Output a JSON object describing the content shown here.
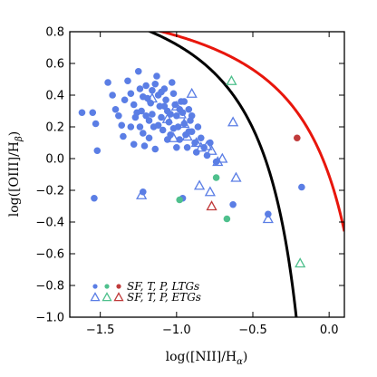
{
  "chart_data": {
    "type": "scatter",
    "title": "",
    "xlabel": "log([NII]/H",
    "xlabel_sub": "α",
    "xlabel_close": ")",
    "ylabel": "log([OIII]/H",
    "ylabel_sub": "β",
    "ylabel_close": ")",
    "xlim": [
      -1.7,
      0.1
    ],
    "ylim": [
      -1.0,
      0.8
    ],
    "xticks": [
      "−1.5",
      "−1.0",
      "−0.5",
      "0.0"
    ],
    "xtick_values": [
      -1.5,
      -1.0,
      -0.5,
      0.0
    ],
    "yticks": [
      "−1.0",
      "−0.8",
      "−0.6",
      "−0.4",
      "−0.2",
      "0.0",
      "0.2",
      "0.4",
      "0.6",
      "0.8"
    ],
    "ytick_values": [
      -1.0,
      -0.8,
      -0.6,
      -0.4,
      -0.2,
      0.0,
      0.2,
      0.4,
      0.6,
      0.8
    ],
    "grid": false,
    "legend_position": "bottom-left",
    "legend_rows": [
      "SF,  T,  P,  LTGs",
      "SF,  T,  P,  ETGs"
    ],
    "colors": {
      "sf": "#5b7ee5",
      "t": "#4fc08d",
      "p": "#c03b3b",
      "kauffmann": "#000000",
      "kewley": "#e8160c"
    },
    "curves": [
      {
        "name": "kauffmann",
        "formula": "0.61/(x-0.05)+1.3",
        "x_max": -0.21
      },
      {
        "name": "kewley",
        "formula": "0.61/(x-0.47)+1.19",
        "x_max": 0.1
      }
    ],
    "series": [
      {
        "class": "SF",
        "galaxy": "LTG",
        "marker": "circle",
        "points": [
          [
            -1.62,
            0.29
          ],
          [
            -1.55,
            0.29
          ],
          [
            -1.53,
            0.22
          ],
          [
            -1.52,
            0.05
          ],
          [
            -1.54,
            -0.25
          ],
          [
            -1.45,
            0.48
          ],
          [
            -1.42,
            0.4
          ],
          [
            -1.4,
            0.31
          ],
          [
            -1.38,
            0.27
          ],
          [
            -1.36,
            0.21
          ],
          [
            -1.35,
            0.14
          ],
          [
            -1.34,
            0.37
          ],
          [
            -1.32,
            0.49
          ],
          [
            -1.3,
            0.41
          ],
          [
            -1.28,
            0.34
          ],
          [
            -1.27,
            0.26
          ],
          [
            -1.25,
            0.55
          ],
          [
            -1.24,
            0.44
          ],
          [
            -1.23,
            0.3
          ],
          [
            -1.22,
            0.16
          ],
          [
            -1.21,
            0.08
          ],
          [
            -1.2,
            0.46
          ],
          [
            -1.19,
            0.38
          ],
          [
            -1.18,
            0.24
          ],
          [
            -1.17,
            0.35
          ],
          [
            -1.16,
            0.28
          ],
          [
            -1.15,
            0.2
          ],
          [
            -1.14,
            0.47
          ],
          [
            -1.13,
            0.52
          ],
          [
            -1.12,
            0.4
          ],
          [
            -1.11,
            0.33
          ],
          [
            -1.1,
            0.26
          ],
          [
            -1.09,
            0.18
          ],
          [
            -1.08,
            0.44
          ],
          [
            -1.07,
            0.37
          ],
          [
            -1.06,
            0.3
          ],
          [
            -1.05,
            0.23
          ],
          [
            -1.04,
            0.15
          ],
          [
            -1.03,
            0.48
          ],
          [
            -1.02,
            0.41
          ],
          [
            -1.01,
            0.34
          ],
          [
            -1.0,
            0.27
          ],
          [
            -0.99,
            0.2
          ],
          [
            -0.98,
            0.12
          ],
          [
            -0.97,
            0.36
          ],
          [
            -0.96,
            0.29
          ],
          [
            -0.95,
            0.22
          ],
          [
            -0.94,
            0.15
          ],
          [
            -0.93,
            0.07
          ],
          [
            -0.92,
            0.31
          ],
          [
            -0.91,
            0.24
          ],
          [
            -0.9,
            0.17
          ],
          [
            -0.88,
            0.1
          ],
          [
            -0.87,
            0.04
          ],
          [
            -0.86,
            0.2
          ],
          [
            -0.84,
            0.13
          ],
          [
            -0.82,
            0.07
          ],
          [
            -0.8,
            0.02
          ],
          [
            -0.78,
            0.1
          ],
          [
            -0.74,
            -0.02
          ],
          [
            -1.26,
            0.29
          ],
          [
            -1.24,
            0.2
          ],
          [
            -1.3,
            0.2
          ],
          [
            -1.1,
            0.42
          ],
          [
            -1.06,
            0.12
          ],
          [
            -1.0,
            0.07
          ],
          [
            -0.95,
            0.36
          ],
          [
            -1.18,
            0.13
          ],
          [
            -1.14,
            0.06
          ],
          [
            -1.16,
            0.43
          ],
          [
            -0.98,
            0.31
          ],
          [
            -1.08,
            0.33
          ],
          [
            -1.02,
            0.19
          ],
          [
            -1.22,
            0.39
          ],
          [
            -1.28,
            0.09
          ],
          [
            -1.04,
            0.28
          ],
          [
            -0.92,
            0.17
          ],
          [
            -0.9,
            0.27
          ],
          [
            -1.12,
            0.21
          ],
          [
            -1.2,
            0.27
          ],
          [
            -0.63,
            -0.29
          ],
          [
            -0.4,
            -0.35
          ],
          [
            -1.22,
            -0.21
          ],
          [
            -0.96,
            -0.25
          ],
          [
            -0.18,
            -0.18
          ]
        ]
      },
      {
        "class": "T",
        "galaxy": "LTG",
        "marker": "circle",
        "points": [
          [
            -0.98,
            -0.26
          ],
          [
            -0.74,
            -0.12
          ],
          [
            -0.67,
            -0.38
          ]
        ]
      },
      {
        "class": "P",
        "galaxy": "LTG",
        "marker": "circle",
        "points": [
          [
            -0.21,
            0.13
          ]
        ]
      },
      {
        "class": "SF",
        "galaxy": "ETG",
        "marker": "triangle",
        "points": [
          [
            -1.23,
            -0.23
          ],
          [
            -1.16,
            0.38
          ],
          [
            -1.06,
            0.25
          ],
          [
            -1.02,
            0.13
          ],
          [
            -1.0,
            0.33
          ],
          [
            -0.97,
            0.28
          ],
          [
            -0.95,
            0.22
          ],
          [
            -0.93,
            0.14
          ],
          [
            -0.9,
            0.41
          ],
          [
            -0.87,
            0.1
          ],
          [
            -0.84,
            0.07
          ],
          [
            -0.8,
            0.08
          ],
          [
            -0.77,
            0.05
          ],
          [
            -0.73,
            -0.02
          ],
          [
            -0.7,
            0.0
          ],
          [
            -0.63,
            0.23
          ],
          [
            -0.85,
            -0.17
          ],
          [
            -0.78,
            -0.21
          ],
          [
            -0.61,
            -0.12
          ],
          [
            -0.4,
            -0.38
          ]
        ]
      },
      {
        "class": "T",
        "galaxy": "ETG",
        "marker": "triangle",
        "points": [
          [
            -0.64,
            0.49
          ],
          [
            -0.19,
            -0.66
          ]
        ]
      },
      {
        "class": "P",
        "galaxy": "ETG",
        "marker": "triangle",
        "points": [
          [
            -0.77,
            -0.3
          ]
        ]
      }
    ]
  }
}
